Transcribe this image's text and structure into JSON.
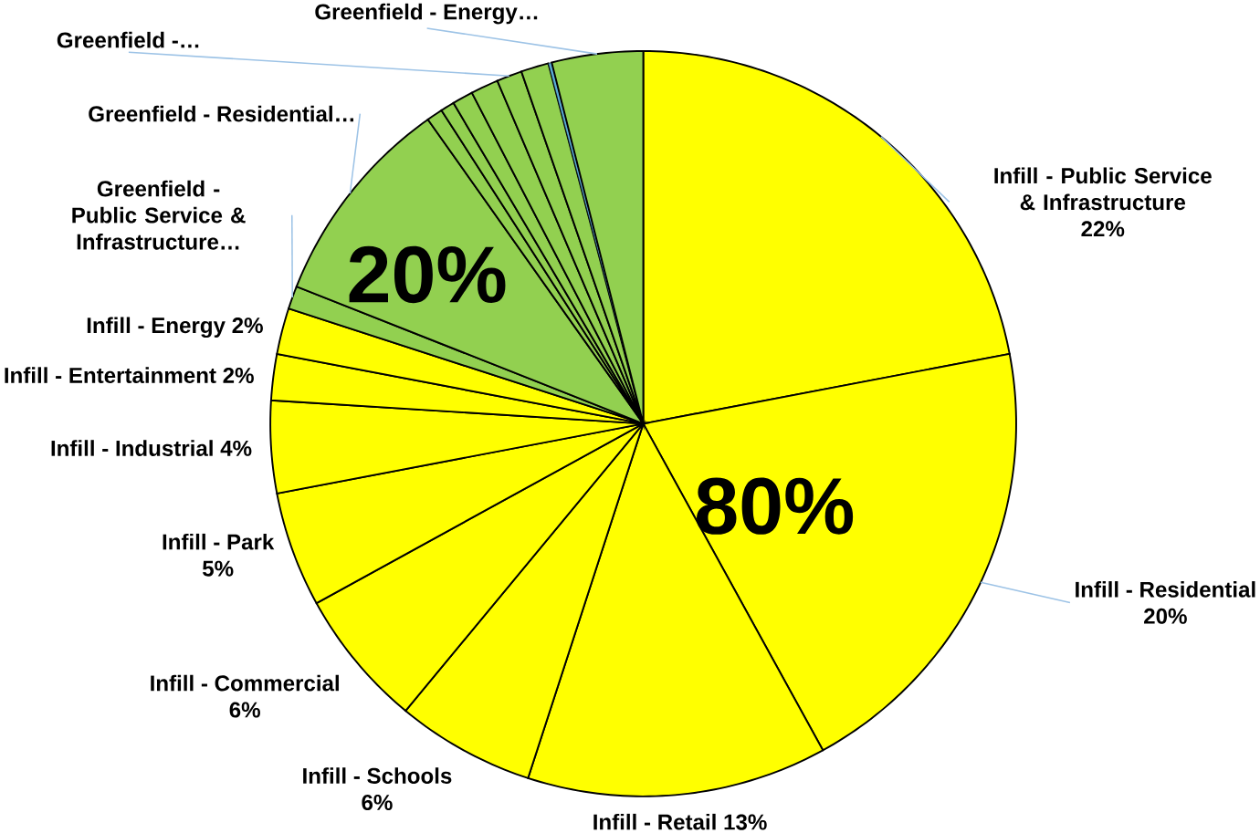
{
  "chart_data": {
    "type": "pie",
    "categories": [
      "Infill - Public Service & Infrastructure",
      "Infill - Residential",
      "Infill - Retail",
      "Infill - Schools",
      "Infill - Commercial",
      "Infill - Park",
      "Infill - Industrial",
      "Infill - Entertainment",
      "Infill - Energy",
      "Greenfield - Public Service & Infrastructure…",
      "Greenfield - Residential…",
      null,
      null,
      null,
      null,
      "Greenfield -…",
      null,
      null,
      "Greenfield - Energy…"
    ],
    "values": [
      22,
      20,
      13,
      6,
      6,
      5,
      4,
      2,
      2,
      1.0,
      9.2,
      0.7,
      0.6,
      0.9,
      1.2,
      1.1,
      1.2,
      0.15,
      3.95
    ],
    "value_labels": [
      "22%",
      "20%",
      "13%",
      "6%",
      "6%",
      "5%",
      "4%",
      "2%",
      "2%",
      null,
      null,
      null,
      null,
      null,
      null,
      null,
      null,
      null,
      null
    ],
    "colors": [
      "#ffff00",
      "#ffff00",
      "#ffff00",
      "#ffff00",
      "#ffff00",
      "#ffff00",
      "#ffff00",
      "#ffff00",
      "#ffff00",
      "#92d050",
      "#92d050",
      "#92d050",
      "#92d050",
      "#92d050",
      "#92d050",
      "#92d050",
      "#92d050",
      "#5aaad6",
      "#92d050"
    ],
    "annotations": [
      "80%",
      "20%"
    ]
  }
}
